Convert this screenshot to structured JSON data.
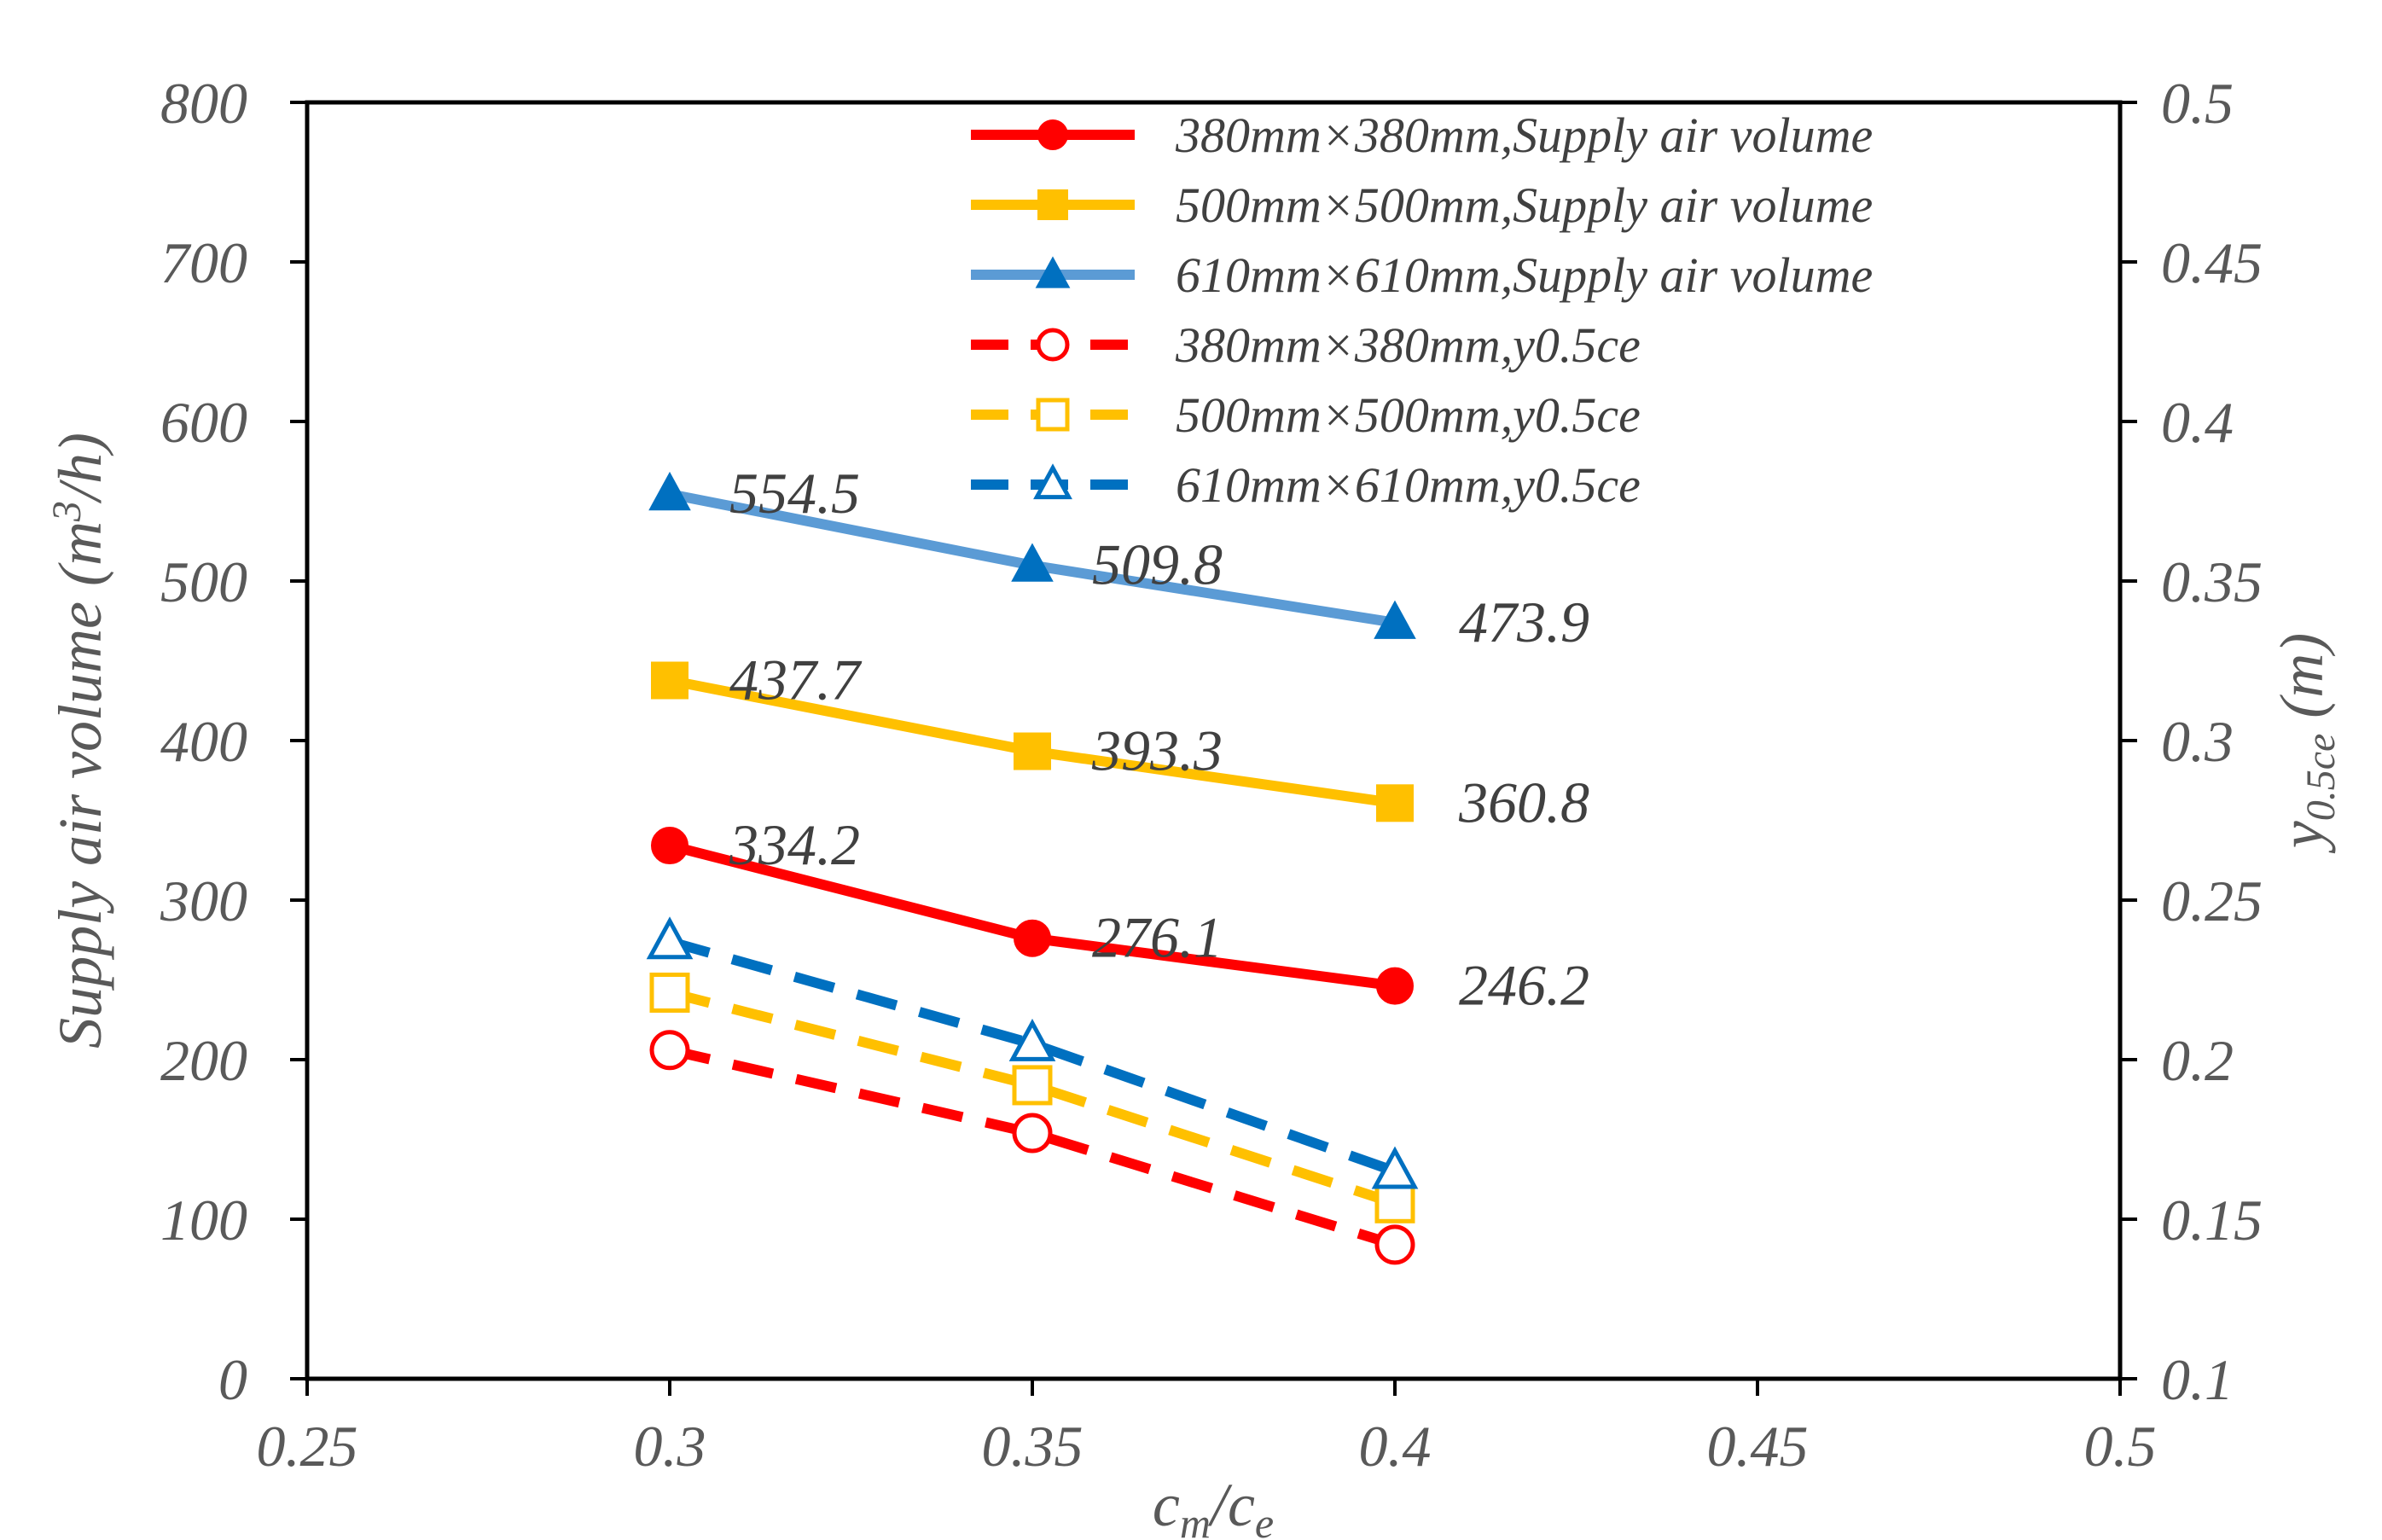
{
  "chart_data": {
    "type": "line",
    "xlabel": {
      "main": "c",
      "sub1": "m",
      "sep": "/c",
      "sub2": "e"
    },
    "ylabel_left": {
      "pre": "Supply air volume (m",
      "sup": "3",
      "post": "/h)"
    },
    "ylabel_right": {
      "pre": "y",
      "sub": "0.5ce",
      "post": " (m)"
    },
    "xlim": [
      0.25,
      0.5
    ],
    "xticks": [
      "0.25",
      "0.3",
      "0.35",
      "0.4",
      "0.45",
      "0.5"
    ],
    "ylim_left": [
      0,
      800
    ],
    "yticks_left": [
      "0",
      "100",
      "200",
      "300",
      "400",
      "500",
      "600",
      "700",
      "800"
    ],
    "ylim_right": [
      0.1,
      0.5
    ],
    "yticks_right": [
      "0.1",
      "0.15",
      "0.2",
      "0.25",
      "0.3",
      "0.35",
      "0.4",
      "0.45",
      "0.5"
    ],
    "grid": false,
    "legend_position": "top-right",
    "x": [
      0.3,
      0.35,
      0.4
    ],
    "series": [
      {
        "name": "380mm×380mm,Supply air volume",
        "axis": "left",
        "values": [
          334.2,
          276.1,
          246.2
        ],
        "labels": [
          "334.2",
          "276.1",
          "246.2"
        ],
        "color": "#ff0000",
        "marker": "circle",
        "filled": true,
        "dashed": false
      },
      {
        "name": "500mm×500mm,Supply air volume",
        "axis": "left",
        "values": [
          437.7,
          393.3,
          360.8
        ],
        "labels": [
          "437.7",
          "393.3",
          "360.8"
        ],
        "color": "#ffc000",
        "marker": "square",
        "filled": true,
        "dashed": false
      },
      {
        "name": "610mm×610mm,Supply air volume",
        "axis": "left",
        "values": [
          554.5,
          509.8,
          473.9
        ],
        "labels": [
          "554.5",
          "509.8",
          "473.9"
        ],
        "color": "#5b9bd5",
        "markerColor": "#0070c0",
        "marker": "triangle",
        "filled": true,
        "dashed": false
      },
      {
        "name": "380mm×380mm,y0.5ce",
        "axis": "right",
        "values": [
          0.203,
          0.177,
          0.142
        ],
        "color": "#ff0000",
        "marker": "circle",
        "filled": false,
        "dashed": true
      },
      {
        "name": "500mm×500mm,y0.5ce",
        "axis": "right",
        "values": [
          0.221,
          0.192,
          0.155
        ],
        "color": "#ffc000",
        "marker": "square",
        "filled": false,
        "dashed": true
      },
      {
        "name": "610mm×610mm,y0.5ce",
        "axis": "right",
        "values": [
          0.237,
          0.205,
          0.165
        ],
        "color": "#0070c0",
        "marker": "triangle",
        "filled": false,
        "dashed": true
      }
    ]
  }
}
